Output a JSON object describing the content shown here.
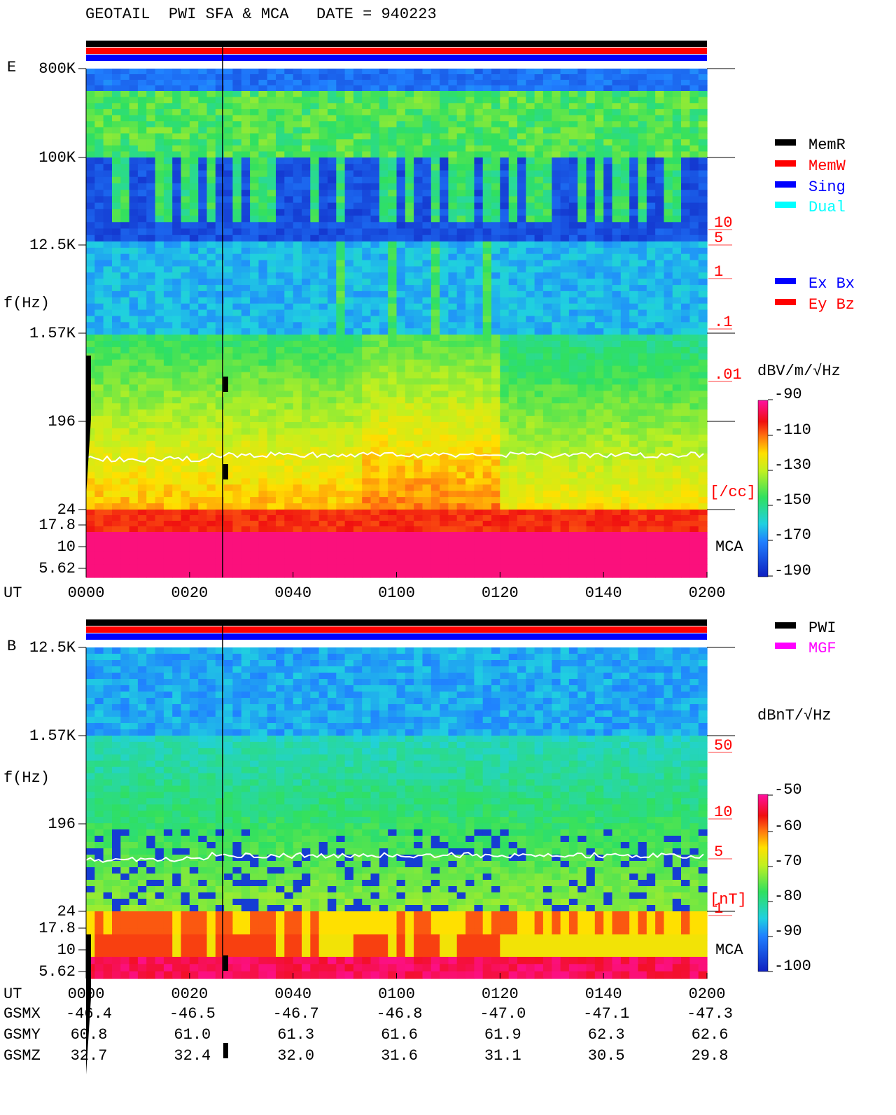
{
  "title": "GEOTAIL  PWI SFA & MCA   DATE = 940223",
  "panels": [
    {
      "label": "E",
      "y_axis_label": "f(Hz)",
      "freq_ticks": [
        "800K",
        "100K",
        "12.5K",
        "1.57K",
        "196",
        "24",
        "17.8",
        "10",
        "5.62"
      ],
      "time_axis_label": "UT",
      "time_ticks": [
        "0000",
        "0020",
        "0040",
        "0100",
        "0120",
        "0140",
        "0200"
      ],
      "side_scale": {
        "ticks": [
          "10",
          "5",
          "1",
          ".1",
          ".01"
        ],
        "unit": "[/cc]"
      },
      "mca_label": "MCA",
      "legend": [
        {
          "label": "MemR",
          "color": "#000000",
          "text_color": "#000000"
        },
        {
          "label": "MemW",
          "color": "#ff0000",
          "text_color": "#ff0000"
        },
        {
          "label": "Sing",
          "color": "#0000ff",
          "text_color": "#0000ff"
        },
        {
          "label": "Dual",
          "color": "#00ffff",
          "text_color": "#00ffff"
        },
        {
          "label": "Ex Bx",
          "color": "#0000ff",
          "text_color": "#0000ff"
        },
        {
          "label": "Ey Bz",
          "color": "#ff0000",
          "text_color": "#ff0000"
        }
      ],
      "colorbar": {
        "unit": "dBV/m/√Hz",
        "ticks": [
          -90,
          -110,
          -130,
          -150,
          -170,
          -190
        ]
      }
    },
    {
      "label": "B",
      "y_axis_label": "f(Hz)",
      "freq_ticks": [
        "12.5K",
        "1.57K",
        "196",
        "24",
        "17.8",
        "10",
        "5.62"
      ],
      "time_axis_label": "UT",
      "time_ticks": [
        "0000",
        "0020",
        "0040",
        "0100",
        "0120",
        "0140",
        "0200"
      ],
      "side_scale": {
        "ticks": [
          "50",
          "10",
          "5",
          "1"
        ],
        "unit": "[nT]"
      },
      "mca_label": "MCA",
      "legend": [
        {
          "label": "PWI",
          "color": "#000000",
          "text_color": "#000000"
        },
        {
          "label": "MGF",
          "color": "#ff00ff",
          "text_color": "#ff00ff"
        }
      ],
      "colorbar": {
        "unit": "dBnT/√Hz",
        "ticks": [
          -50,
          -60,
          -70,
          -80,
          -90,
          -100
        ]
      }
    }
  ],
  "ephemeris": [
    {
      "name": "GSMX",
      "values": [
        "-46.4",
        "-46.5",
        "-46.7",
        "-46.8",
        "-47.0",
        "-47.1",
        "-47.3"
      ]
    },
    {
      "name": "GSMY",
      "values": [
        "60.8",
        "61.0",
        "61.3",
        "61.6",
        "61.9",
        "62.3",
        "62.6"
      ]
    },
    {
      "name": "GSMZ",
      "values": [
        "32.7",
        "32.4",
        "32.0",
        "31.6",
        "31.1",
        "30.5",
        "29.8"
      ]
    }
  ]
}
